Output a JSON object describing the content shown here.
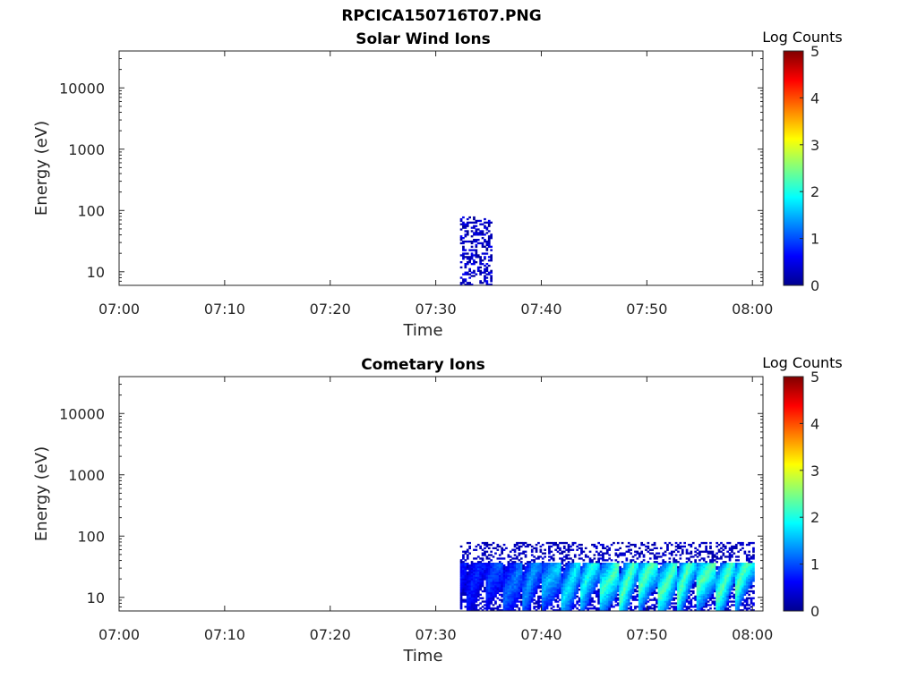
{
  "figure": {
    "title": "RPCICA150716T07.PNG"
  },
  "chart_data": [
    {
      "type": "heatmap",
      "title": "Solar Wind Ions",
      "xlabel": "Time",
      "ylabel": "Energy (eV)",
      "x_ticks": [
        "07:00",
        "07:10",
        "07:20",
        "07:30",
        "07:40",
        "07:50",
        "08:00"
      ],
      "y_scale": "log",
      "y_ticks": [
        10,
        100,
        1000,
        10000
      ],
      "ylim": [
        6,
        40000
      ],
      "colorbar": {
        "label": "Log Counts",
        "range": [
          0,
          5
        ],
        "ticks": [
          0,
          1,
          2,
          3,
          4,
          5
        ],
        "colormap": "jet"
      },
      "activity": [
        {
          "start_min": 32.3,
          "end_min": 35.3,
          "e_min": 6,
          "e_max": 80,
          "log_counts_max": 1.0,
          "sparse": true
        }
      ]
    },
    {
      "type": "heatmap",
      "title": "Cometary Ions",
      "xlabel": "Time",
      "ylabel": "Energy (eV)",
      "x_ticks": [
        "07:00",
        "07:10",
        "07:20",
        "07:30",
        "07:40",
        "07:50",
        "08:00"
      ],
      "y_scale": "log",
      "y_ticks": [
        10,
        100,
        1000,
        10000
      ],
      "ylim": [
        6,
        40000
      ],
      "colorbar": {
        "label": "Log Counts",
        "range": [
          0,
          5
        ],
        "ticks": [
          0,
          1,
          2,
          3,
          4,
          5
        ],
        "colormap": "jet"
      },
      "activity": [
        {
          "start_min": 32.3,
          "end_min": 60,
          "e_min": 6,
          "e_max": 80,
          "log_counts_max": 2.2,
          "sparse": false
        }
      ]
    }
  ]
}
